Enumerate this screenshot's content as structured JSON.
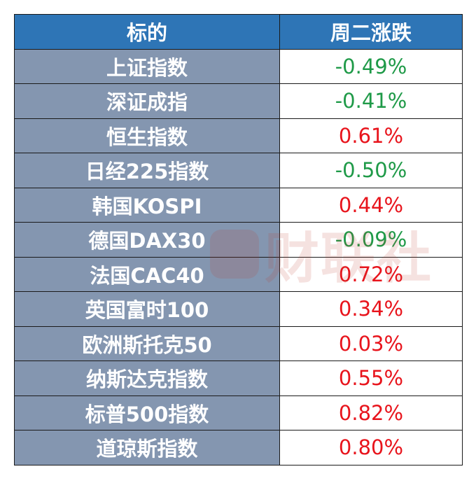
{
  "header": {
    "name_label": "标的",
    "change_label": "周二涨跌"
  },
  "rows": [
    {
      "name": "上证指数",
      "change": "-0.49%",
      "direction": "down"
    },
    {
      "name": "深证成指",
      "change": "-0.41%",
      "direction": "down"
    },
    {
      "name": "恒生指数",
      "change": "0.61%",
      "direction": "up"
    },
    {
      "name": "日经225指数",
      "change": "-0.50%",
      "direction": "down"
    },
    {
      "name": "韩国KOSPI",
      "change": "0.44%",
      "direction": "up"
    },
    {
      "name": "德国DAX30",
      "change": "-0.09%",
      "direction": "down"
    },
    {
      "name": "法国CAC40",
      "change": "0.72%",
      "direction": "up"
    },
    {
      "name": "英国富时100",
      "change": "0.34%",
      "direction": "up"
    },
    {
      "name": "欧洲斯托克50",
      "change": "0.03%",
      "direction": "up"
    },
    {
      "name": "纳斯达克指数",
      "change": "0.55%",
      "direction": "up"
    },
    {
      "name": "标普500指数",
      "change": "0.82%",
      "direction": "up"
    },
    {
      "name": "道琼斯指数",
      "change": "0.80%",
      "direction": "up"
    }
  ],
  "watermark": {
    "text": "财联社"
  },
  "colors": {
    "header_bg": "#2e75b6",
    "name_bg": "#8496b0",
    "up": "#e8141c",
    "down": "#1f9a48"
  }
}
